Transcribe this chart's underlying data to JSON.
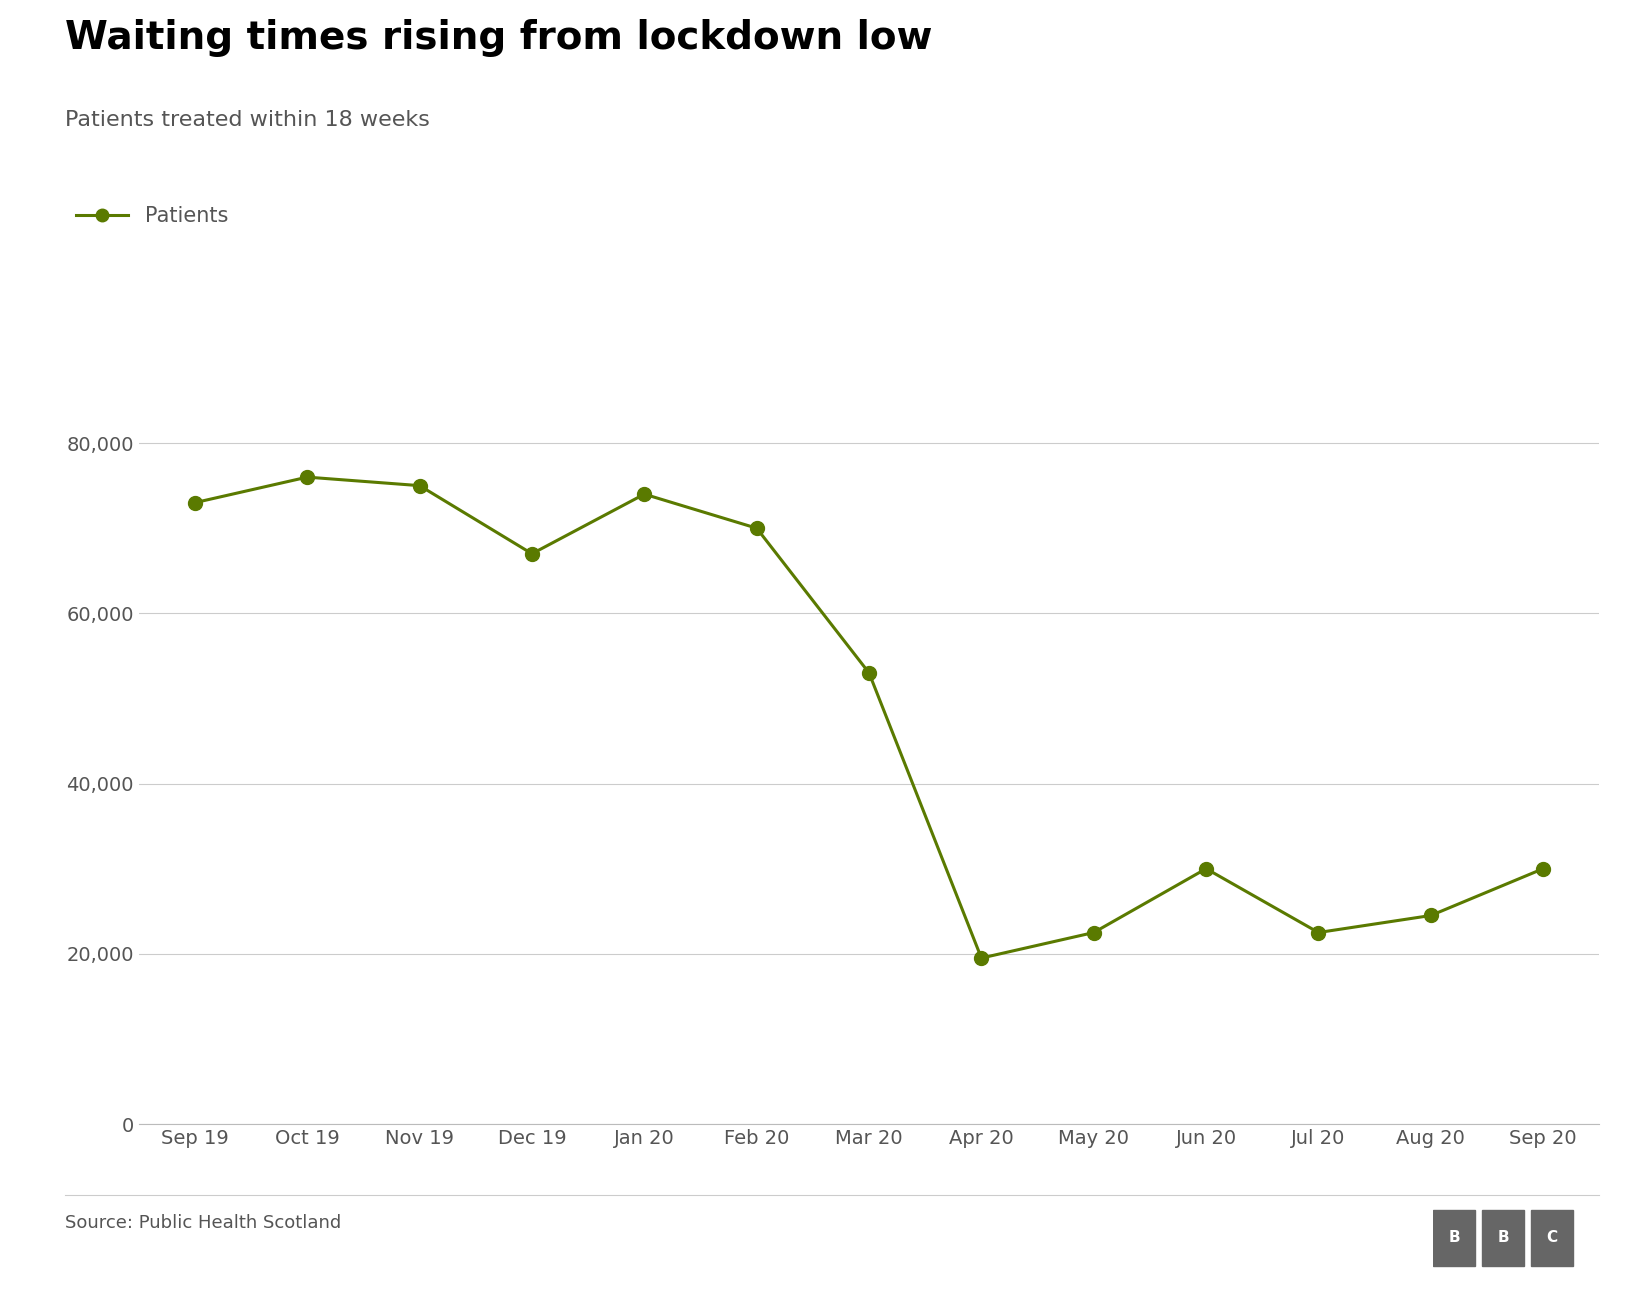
{
  "title": "Waiting times rising from lockdown low",
  "subtitle": "Patients treated within 18 weeks",
  "legend_label": "Patients",
  "source": "Source: Public Health Scotland",
  "x_labels": [
    "Sep 19",
    "Oct 19",
    "Nov 19",
    "Dec 19",
    "Jan 20",
    "Feb 20",
    "Mar 20",
    "Apr 20",
    "May 20",
    "Jun 20",
    "Jul 20",
    "Aug 20",
    "Sep 20"
  ],
  "y_values": [
    73000,
    76000,
    75000,
    67000,
    74000,
    70000,
    53000,
    19500,
    22500,
    30000,
    22500,
    24500,
    30000
  ],
  "line_color": "#5a7a00",
  "marker_color": "#5a7a00",
  "ylim": [
    0,
    85000
  ],
  "yticks": [
    0,
    20000,
    40000,
    60000,
    80000
  ],
  "background_color": "#ffffff",
  "grid_color": "#cccccc",
  "title_fontsize": 28,
  "subtitle_fontsize": 16,
  "tick_fontsize": 14,
  "source_fontsize": 13,
  "legend_fontsize": 15,
  "marker_size": 10,
  "line_width": 2.2
}
